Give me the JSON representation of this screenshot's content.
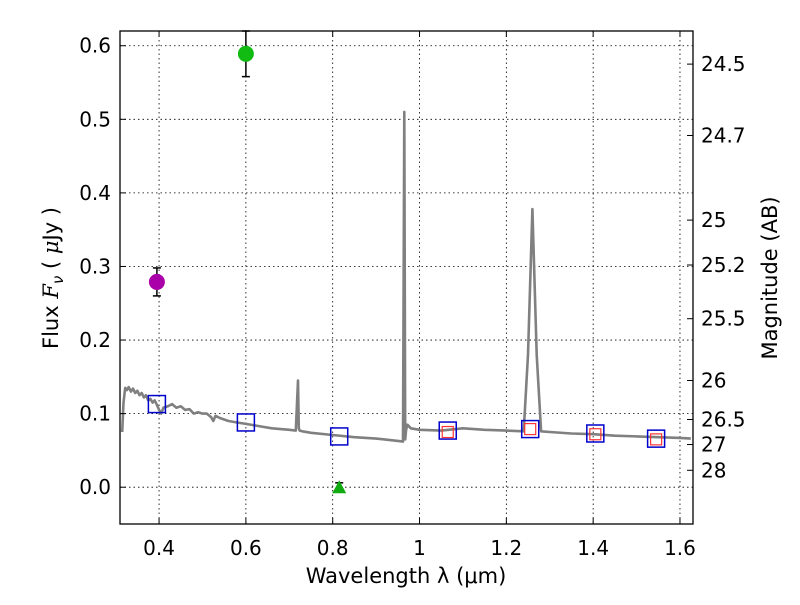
{
  "chart_data": {
    "type": "scatter",
    "xlabel": "Wavelength  λ (μm)",
    "ylabel": "Flux  F_ν  ( μJy )",
    "y2label": "Magnitude (AB)",
    "xlim": [
      0.31,
      1.63
    ],
    "ylim": [
      -0.05,
      0.62
    ],
    "xticks": [
      {
        "v": 0.4,
        "label": "0.4"
      },
      {
        "v": 0.6,
        "label": "0.6"
      },
      {
        "v": 0.8,
        "label": "0.8"
      },
      {
        "v": 1.0,
        "label": "1"
      },
      {
        "v": 1.2,
        "label": "1.2"
      },
      {
        "v": 1.4,
        "label": "1.4"
      },
      {
        "v": 1.6,
        "label": "1.6"
      }
    ],
    "yticks": [
      {
        "v": 0.0,
        "label": "0.0"
      },
      {
        "v": 0.1,
        "label": "0.1"
      },
      {
        "v": 0.2,
        "label": "0.2"
      },
      {
        "v": 0.3,
        "label": "0.3"
      },
      {
        "v": 0.4,
        "label": "0.4"
      },
      {
        "v": 0.5,
        "label": "0.5"
      },
      {
        "v": 0.6,
        "label": "0.6"
      }
    ],
    "y2ticks": [
      {
        "flux": 0.575,
        "label": "24.5"
      },
      {
        "flux": 0.478,
        "label": "24.7"
      },
      {
        "flux": 0.363,
        "label": "25"
      },
      {
        "flux": 0.302,
        "label": "25.2"
      },
      {
        "flux": 0.229,
        "label": "25.5"
      },
      {
        "flux": 0.145,
        "label": "26"
      },
      {
        "flux": 0.092,
        "label": "26.5"
      },
      {
        "flux": 0.058,
        "label": "27"
      },
      {
        "flux": 0.023,
        "label": "28"
      }
    ],
    "model_spectrum": {
      "color": "#808080",
      "x": [
        0.315,
        0.318,
        0.322,
        0.326,
        0.33,
        0.335,
        0.34,
        0.345,
        0.35,
        0.355,
        0.36,
        0.365,
        0.37,
        0.375,
        0.38,
        0.385,
        0.39,
        0.395,
        0.4,
        0.405,
        0.41,
        0.42,
        0.43,
        0.44,
        0.45,
        0.46,
        0.47,
        0.48,
        0.49,
        0.5,
        0.51,
        0.52,
        0.525,
        0.53,
        0.54,
        0.56,
        0.58,
        0.6,
        0.62,
        0.64,
        0.66,
        0.68,
        0.7,
        0.715,
        0.72,
        0.722,
        0.724,
        0.73,
        0.75,
        0.8,
        0.85,
        0.9,
        0.95,
        0.962,
        0.965,
        0.967,
        0.969,
        0.972,
        0.98,
        1.0,
        1.05,
        1.1,
        1.15,
        1.2,
        1.24,
        1.25,
        1.26,
        1.27,
        1.28,
        1.3,
        1.35,
        1.4,
        1.45,
        1.5,
        1.55,
        1.6,
        1.625
      ],
      "y": [
        0.075,
        0.115,
        0.135,
        0.132,
        0.136,
        0.13,
        0.134,
        0.128,
        0.131,
        0.125,
        0.128,
        0.122,
        0.125,
        0.118,
        0.12,
        0.115,
        0.118,
        0.112,
        0.105,
        0.1,
        0.108,
        0.11,
        0.113,
        0.108,
        0.11,
        0.105,
        0.106,
        0.1,
        0.102,
        0.1,
        0.1,
        0.095,
        0.09,
        0.097,
        0.094,
        0.09,
        0.088,
        0.086,
        0.084,
        0.082,
        0.08,
        0.079,
        0.078,
        0.077,
        0.145,
        0.08,
        0.077,
        0.076,
        0.074,
        0.071,
        0.068,
        0.066,
        0.063,
        0.062,
        0.51,
        0.065,
        0.078,
        0.085,
        0.08,
        0.078,
        0.077,
        0.08,
        0.078,
        0.077,
        0.076,
        0.18,
        0.378,
        0.18,
        0.076,
        0.075,
        0.073,
        0.072,
        0.07,
        0.069,
        0.068,
        0.067,
        0.066
      ]
    },
    "model_bands": {
      "color": "#0000cc",
      "points": [
        {
          "x": 0.395,
          "y": 0.113
        },
        {
          "x": 0.6,
          "y": 0.088
        },
        {
          "x": 0.815,
          "y": 0.069
        },
        {
          "x": 1.065,
          "y": 0.077
        },
        {
          "x": 1.255,
          "y": 0.079
        },
        {
          "x": 1.405,
          "y": 0.073
        },
        {
          "x": 1.545,
          "y": 0.066
        }
      ]
    },
    "observed_red": {
      "color": "#ff3333",
      "points": [
        {
          "x": 1.065,
          "y": 0.075
        },
        {
          "x": 1.255,
          "y": 0.079
        },
        {
          "x": 1.405,
          "y": 0.072
        },
        {
          "x": 1.545,
          "y": 0.065
        }
      ]
    },
    "observed_points": [
      {
        "x": 0.395,
        "y": 0.279,
        "err": 0.019,
        "marker": "circle",
        "color": "#aa00aa"
      },
      {
        "x": 0.6,
        "y": 0.589,
        "err": 0.031,
        "marker": "circle",
        "color": "#11bb11"
      },
      {
        "x": 0.815,
        "y": 0.0,
        "err": 0.006,
        "marker": "triangle",
        "color": "#11aa11"
      }
    ]
  }
}
